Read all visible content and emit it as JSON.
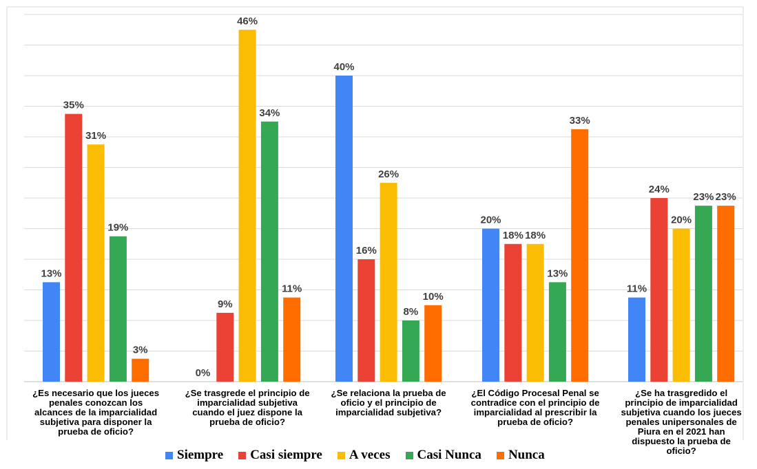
{
  "chart_data": {
    "type": "bar",
    "categories": [
      [
        "¿Es necesario que los jueces",
        "penales conozcan los",
        "alcances de la imparcialidad",
        "subjetiva para disponer la",
        "prueba de oficio?"
      ],
      [
        "¿Se trasgrede el principio de",
        "imparcialidad subjetiva",
        "cuando el juez dispone la",
        "prueba de oficio?"
      ],
      [
        "¿Se relaciona la prueba de",
        "oficio y el principio de",
        "imparcialidad subjetiva?"
      ],
      [
        "¿El Código Procesal Penal se",
        "contradice con el principio de",
        "imparcialidad al prescribir la",
        "prueba de oficio?"
      ],
      [
        "¿Se ha trasgredido el",
        "principio de imparcialidad",
        "subjetiva cuando los jueces",
        "penales unipersonales de",
        "Piura en el 2021 han",
        "dispuesto la prueba de",
        "oficio?"
      ]
    ],
    "series": [
      {
        "name": "Siempre",
        "color": "#4285f4",
        "values": [
          13,
          0,
          40,
          20,
          11
        ],
        "labels": [
          "13%",
          "0%",
          "40%",
          "20%",
          "11%"
        ]
      },
      {
        "name": "Casi siempre",
        "color": "#ea4335",
        "values": [
          35,
          9,
          16,
          18,
          24
        ],
        "labels": [
          "35%",
          "9%",
          "16%",
          "18%",
          "24%"
        ]
      },
      {
        "name": "A veces",
        "color": "#fbbc04",
        "values": [
          31,
          46,
          26,
          18,
          20
        ],
        "labels": [
          "31%",
          "46%",
          "26%",
          "18%",
          "20%"
        ]
      },
      {
        "name": "Casi Nunca",
        "color": "#34a853",
        "values": [
          19,
          34,
          8,
          13,
          23
        ],
        "labels": [
          "19%",
          "34%",
          "8%",
          "13%",
          "23%"
        ]
      },
      {
        "name": "Nunca",
        "color": "#ff6d01",
        "values": [
          3,
          11,
          10,
          33,
          23
        ],
        "labels": [
          "3%",
          "11%",
          "10%",
          "33%",
          "23%"
        ]
      }
    ],
    "ylim": [
      0,
      48
    ],
    "grid": true,
    "legend": "bottom"
  }
}
